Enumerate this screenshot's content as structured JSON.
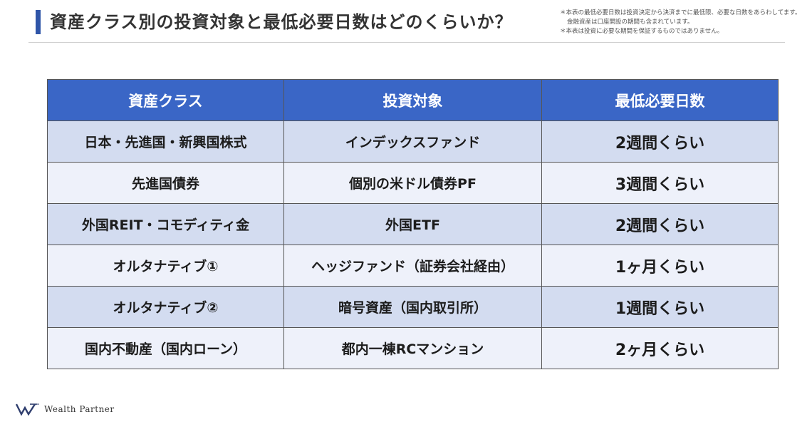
{
  "header": {
    "title": "資産クラス別の投資対象と最低必要日数はどのくらいか？",
    "notes": [
      "＊本表の最低必要日数は投資決定から決済までに最低限、必要な日数をあらわしてます。",
      "金融資産は口座開設の期間も含まれています。",
      "＊本表は投資に必要な期間を保証するものではありません。"
    ]
  },
  "table": {
    "columns": [
      "資産クラス",
      "投資対象",
      "最低必要日数"
    ],
    "rows": [
      {
        "asset_class": "日本・先進国・新興国株式",
        "target": "インデックスファンド",
        "days": "2週間くらい"
      },
      {
        "asset_class": "先進国債券",
        "target": "個別の米ドル債券PF",
        "days": "3週間くらい"
      },
      {
        "asset_class": "外国REIT・コモディティ金",
        "target": "外国ETF",
        "days": "2週間くらい"
      },
      {
        "asset_class": "オルタナティブ①",
        "target": "ヘッジファンド（証券会社経由）",
        "days": "1ヶ月くらい"
      },
      {
        "asset_class": "オルタナティブ②",
        "target": "暗号資産（国内取引所）",
        "days": "1週間くらい"
      },
      {
        "asset_class": "国内不動産（国内ローン）",
        "target": "都内一棟RCマンション",
        "days": "2ヶ月くらい"
      }
    ]
  },
  "footer": {
    "brand_name": "Wealth Partner",
    "logo_icon": "wealth-partner-w-logo",
    "logo_color": "#2f3e6e"
  },
  "colors": {
    "accent": "#2f55a8",
    "header_bg": "#3a66c6",
    "row_odd": "#d3dcf0",
    "row_even": "#eef1fa"
  }
}
